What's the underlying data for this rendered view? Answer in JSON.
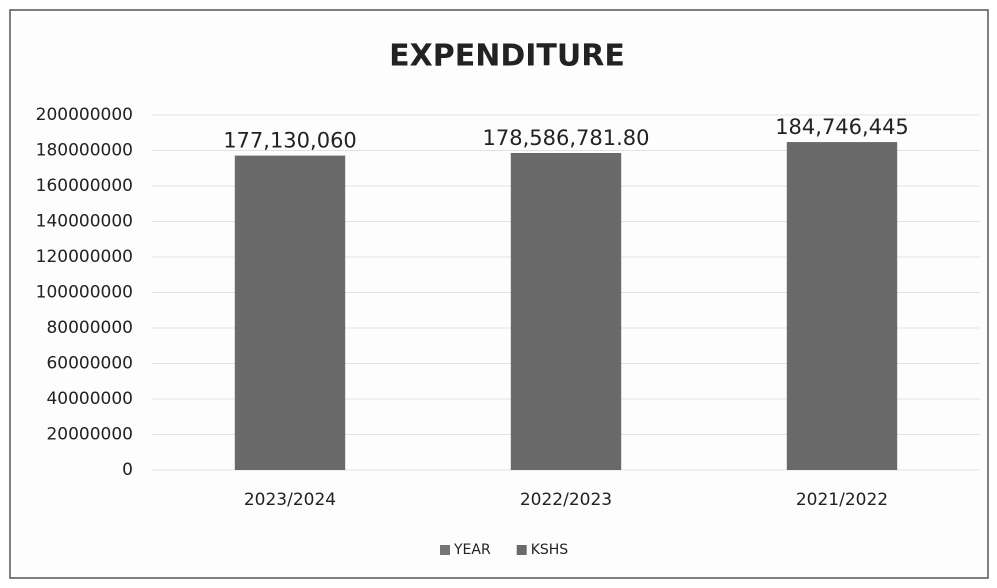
{
  "chart_data": {
    "type": "bar",
    "title": "EXPENDITURE",
    "categories": [
      "2023/2024",
      "2022/2023",
      "2021/2022"
    ],
    "series": [
      {
        "name": "YEAR",
        "color": "#767676",
        "values": [
          null,
          null,
          null
        ]
      },
      {
        "name": "KSHS",
        "color": "#6a6a6a",
        "values": [
          177130060,
          178586781.8,
          184746445
        ],
        "value_labels": [
          "177,130,060",
          "178,586,781.80",
          "184,746,445"
        ]
      }
    ],
    "ylim": [
      0,
      200000000
    ],
    "yticks": [
      0,
      20000000,
      40000000,
      60000000,
      80000000,
      100000000,
      120000000,
      140000000,
      160000000,
      180000000,
      200000000
    ],
    "grid": true,
    "legend": "bottom"
  }
}
